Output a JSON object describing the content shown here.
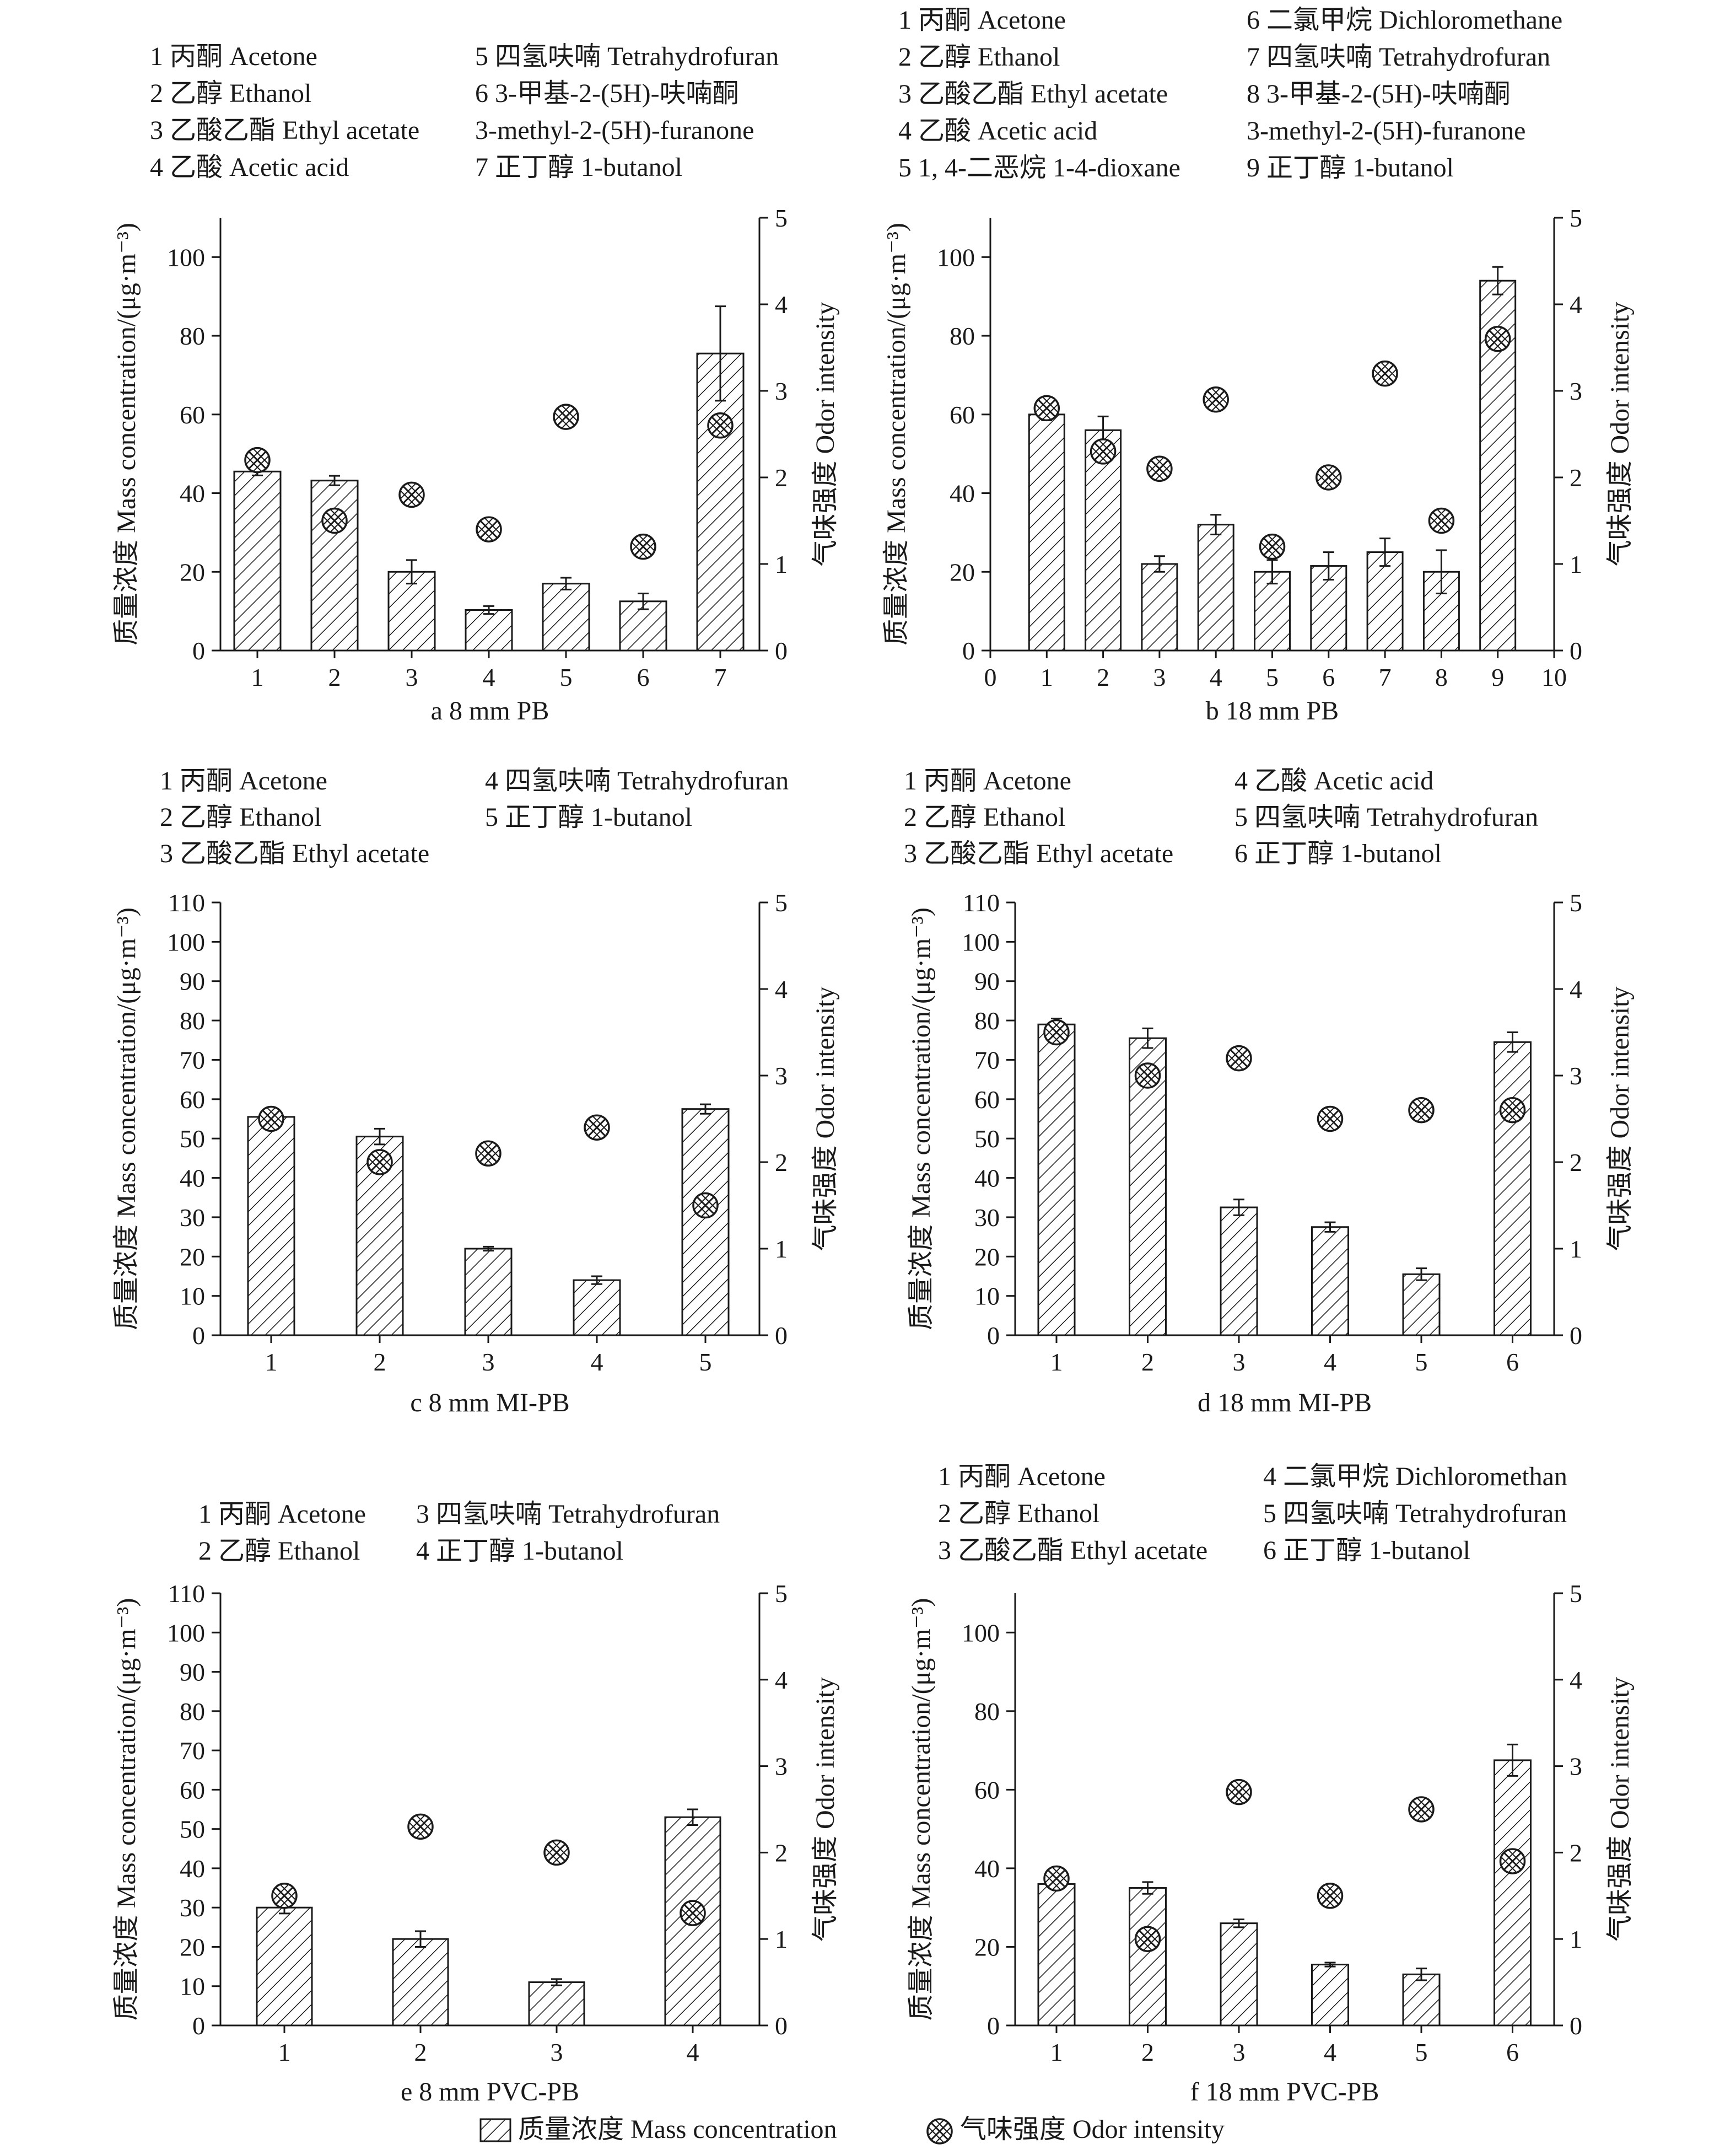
{
  "chart_data": [
    {
      "type": "bar",
      "id": "a",
      "title": "a 8 mm PB",
      "ylabel": "质量浓度 Mass concentration/(μg·m⁻³)",
      "y2label": "气味强度 Odor intensity",
      "ylim": [
        0,
        110
      ],
      "yticks": [
        0,
        20,
        40,
        60,
        80,
        100
      ],
      "y2lim": [
        0,
        5
      ],
      "y2ticks": [
        0,
        1,
        2,
        3,
        4,
        5
      ],
      "xticks": [
        "1",
        "2",
        "3",
        "4",
        "5",
        "6",
        "7"
      ],
      "legend": [
        [
          "1 丙酮 Acetone",
          "2 乙醇 Ethanol",
          "3 乙酸乙酯 Ethyl acetate",
          "4 乙酸 Acetic acid"
        ],
        [
          "5 四氢呋喃 Tetrahydrofuran",
          "6 3-甲基-2-(5H)-呋喃酮",
          " 3-methyl-2-(5H)-furanone",
          "7 正丁醇 1-butanol"
        ]
      ],
      "series": [
        {
          "name": "质量浓度 Mass concentration",
          "values": [
            45.5,
            43.2,
            20,
            10.3,
            17,
            12.5,
            75.5
          ],
          "errors": [
            1,
            1.2,
            3,
            1,
            1.5,
            2,
            12
          ]
        },
        {
          "name": "气味强度 Odor intensity",
          "values": [
            2.2,
            1.5,
            1.8,
            1.4,
            2.7,
            1.2,
            2.6
          ]
        }
      ]
    },
    {
      "type": "bar",
      "id": "b",
      "title": "b 18 mm PB",
      "ylabel": "质量浓度 Mass concentration/(μg·m⁻³)",
      "y2label": "气味强度 Odor intensity",
      "ylim": [
        0,
        110
      ],
      "yticks": [
        0,
        20,
        40,
        60,
        80,
        100
      ],
      "y2lim": [
        0,
        5
      ],
      "y2ticks": [
        0,
        1,
        2,
        3,
        4,
        5
      ],
      "xlim": [
        0,
        10
      ],
      "xticks": [
        "0",
        "1",
        "2",
        "3",
        "4",
        "5",
        "6",
        "7",
        "8",
        "9",
        "10"
      ],
      "legend": [
        [
          "1 丙酮 Acetone",
          "2 乙醇 Ethanol",
          "3 乙酸乙酯 Ethyl acetate",
          "4 乙酸 Acetic acid",
          "5 1, 4-二恶烷 1-4-dioxane"
        ],
        [
          "6 二氯甲烷 Dichloromethane",
          "7 四氢呋喃 Tetrahydrofuran",
          "8 3-甲基-2-(5H)-呋喃酮",
          " 3-methyl-2-(5H)-furanone",
          "9 正丁醇 1-butanol"
        ]
      ],
      "series": [
        {
          "name": "质量浓度 Mass concentration",
          "values": [
            60,
            56,
            22,
            32,
            20,
            21.5,
            25,
            20,
            94
          ],
          "errors": [
            1.5,
            3.5,
            2,
            2.5,
            3,
            3.5,
            3.5,
            5.5,
            3.5
          ]
        },
        {
          "name": "气味强度 Odor intensity",
          "values": [
            2.8,
            2.3,
            2.1,
            2.9,
            1.2,
            2.0,
            3.2,
            1.5,
            3.6
          ]
        }
      ]
    },
    {
      "type": "bar",
      "id": "c",
      "title": "c 8 mm MI-PB",
      "ylabel": "质量浓度 Mass concentration/(μg·m⁻³)",
      "y2label": "气味强度 Odor intensity",
      "ylim": [
        0,
        110
      ],
      "yticks": [
        0,
        10,
        20,
        30,
        40,
        50,
        60,
        70,
        80,
        90,
        100,
        110
      ],
      "y2lim": [
        0,
        5
      ],
      "y2ticks": [
        0,
        1,
        2,
        3,
        4,
        5
      ],
      "xticks": [
        "1",
        "2",
        "3",
        "4",
        "5"
      ],
      "legend": [
        [
          "1 丙酮 Acetone",
          "2 乙醇 Ethanol",
          "3 乙酸乙酯 Ethyl acetate"
        ],
        [
          "4 四氢呋喃 Tetrahydrofuran",
          "5 正丁醇 1-butanol"
        ]
      ],
      "series": [
        {
          "name": "质量浓度 Mass concentration",
          "values": [
            55.5,
            50.5,
            22,
            14,
            57.5
          ],
          "errors": [
            1.5,
            2,
            0.5,
            1,
            1.2
          ]
        },
        {
          "name": "气味强度 Odor intensity",
          "values": [
            2.5,
            2.0,
            2.1,
            2.4,
            1.5
          ]
        }
      ]
    },
    {
      "type": "bar",
      "id": "d",
      "title": "d 18 mm MI-PB",
      "ylabel": "质量浓度 Mass concentration/(μg·m⁻³)",
      "y2label": "气味强度 Odor intensity",
      "ylim": [
        0,
        110
      ],
      "yticks": [
        0,
        10,
        20,
        30,
        40,
        50,
        60,
        70,
        80,
        90,
        100,
        110
      ],
      "y2lim": [
        0,
        5
      ],
      "y2ticks": [
        0,
        1,
        2,
        3,
        4,
        5
      ],
      "xticks": [
        "1",
        "2",
        "3",
        "4",
        "5",
        "6"
      ],
      "legend": [
        [
          "1 丙酮 Acetone",
          "2 乙醇 Ethanol",
          "3 乙酸乙酯 Ethyl acetate"
        ],
        [
          "4 乙酸 Acetic acid",
          "5 四氢呋喃 Tetrahydrofuran",
          "6 正丁醇 1-butanol"
        ]
      ],
      "series": [
        {
          "name": "质量浓度 Mass concentration",
          "values": [
            79,
            75.5,
            32.5,
            27.5,
            15.5,
            74.5
          ],
          "errors": [
            1.5,
            2.5,
            2,
            1.2,
            1.5,
            2.5
          ]
        },
        {
          "name": "气味强度 Odor intensity",
          "values": [
            3.5,
            3.0,
            3.2,
            2.5,
            2.6,
            2.6
          ]
        }
      ]
    },
    {
      "type": "bar",
      "id": "e",
      "title": "e 8 mm PVC-PB",
      "ylabel": "质量浓度 Mass concentration/(μg·m⁻³)",
      "y2label": "气味强度 Odor intensity",
      "ylim": [
        0,
        110
      ],
      "yticks": [
        0,
        10,
        20,
        30,
        40,
        50,
        60,
        70,
        80,
        90,
        100,
        110
      ],
      "y2lim": [
        0,
        5
      ],
      "y2ticks": [
        0,
        1,
        2,
        3,
        4,
        5
      ],
      "xticks": [
        "1",
        "2",
        "3",
        "4"
      ],
      "legend": [
        [
          "1 丙酮 Acetone",
          "2 乙醇 Ethanol"
        ],
        [
          "3 四氢呋喃 Tetrahydrofuran",
          "4 正丁醇 1-butanol"
        ]
      ],
      "series": [
        {
          "name": "质量浓度 Mass concentration",
          "values": [
            30,
            22,
            11,
            53
          ],
          "errors": [
            1.5,
            2,
            0.8,
            2
          ]
        },
        {
          "name": "气味强度 Odor intensity",
          "values": [
            1.5,
            2.3,
            2.0,
            1.3
          ]
        }
      ]
    },
    {
      "type": "bar",
      "id": "f",
      "title": "f 18 mm PVC-PB",
      "ylabel": "质量浓度 Mass concentration/(μg·m⁻³)",
      "y2label": "气味强度 Odor intensity",
      "ylim": [
        0,
        110
      ],
      "yticks": [
        0,
        20,
        40,
        60,
        80,
        100
      ],
      "y2lim": [
        0,
        5
      ],
      "y2ticks": [
        0,
        1,
        2,
        3,
        4,
        5
      ],
      "xticks": [
        "1",
        "2",
        "3",
        "4",
        "5",
        "6"
      ],
      "legend": [
        [
          "1 丙酮 Acetone",
          "2 乙醇 Ethanol",
          "3 乙酸乙酯 Ethyl acetate"
        ],
        [
          "4 二氯甲烷 Dichloromethan",
          "5 四氢呋喃 Tetrahydrofuran",
          "6 正丁醇 1-butanol"
        ]
      ],
      "series": [
        {
          "name": "质量浓度 Mass concentration",
          "values": [
            36,
            35,
            26,
            15.5,
            13,
            67.5
          ],
          "errors": [
            1,
            1.5,
            1,
            0.5,
            1.5,
            4
          ]
        },
        {
          "name": "气味强度 Odor intensity",
          "values": [
            1.7,
            1.0,
            2.7,
            1.5,
            2.5,
            1.9
          ]
        }
      ]
    }
  ],
  "legend": {
    "mass_label": "质量浓度 Mass concentration",
    "odor_label": "气味强度 Odor intensity"
  }
}
